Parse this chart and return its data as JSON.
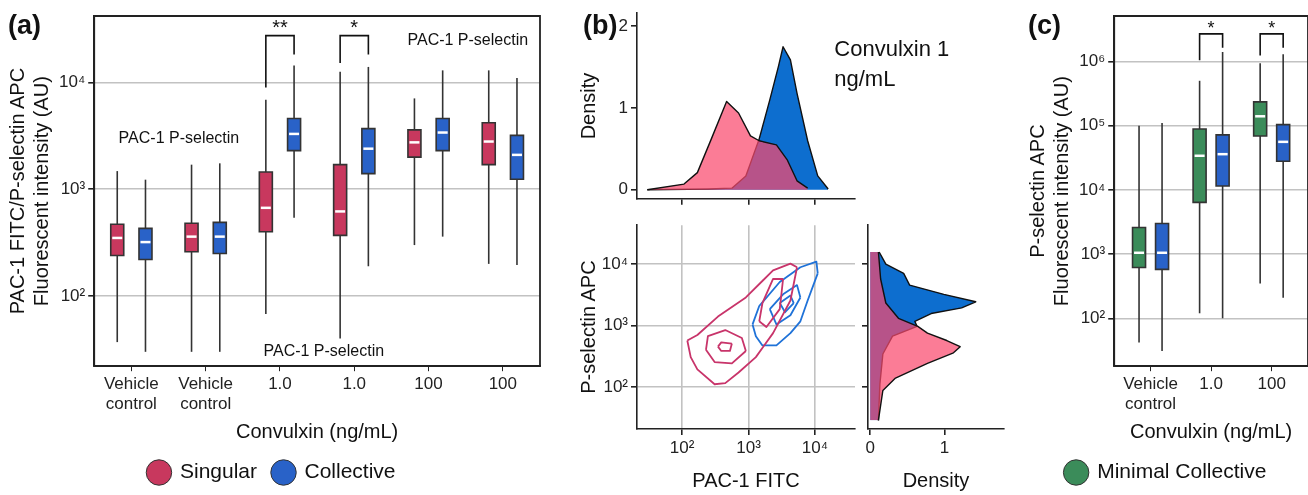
{
  "chart_data": [
    {
      "type": "box",
      "title": "(a)",
      "xlabel": "Convulxin (ng/mL)",
      "ylabel": "PAC-1 FITC/P-selectin APC\nFluorescent intensity (AU)",
      "categories": [
        "Vehicle control",
        "Vehicle control",
        "1.0",
        "1.0",
        "100",
        "100"
      ],
      "log": "y",
      "ylim": [
        22,
        42000
      ],
      "yticks": [
        {
          "value": 100,
          "label": "10²"
        },
        {
          "value": 1000,
          "label": "10³"
        },
        {
          "value": 10000,
          "label": "10⁴"
        }
      ],
      "grid": "y",
      "legend": "bottom",
      "annotations": [
        "**",
        "*",
        "PAC-1 P-selectin",
        "PAC-1 P-selectin",
        "PAC-1 P-selectin"
      ],
      "series": [
        {
          "name": "Singular",
          "color": "#c8385e",
          "boxes": [
            {
              "low": 37,
              "q1": 240,
              "median": 350,
              "q3": 470,
              "high": 1480
            },
            {
              "low": 30,
              "q1": 260,
              "median": 360,
              "q3": 480,
              "high": 1700
            },
            {
              "low": 68,
              "q1": 400,
              "median": 670,
              "q3": 1450,
              "high": 6900
            },
            {
              "low": 40,
              "q1": 370,
              "median": 620,
              "q3": 1700,
              "high": 12600
            },
            {
              "low": 300,
              "q1": 2000,
              "median": 2750,
              "q3": 3600,
              "high": 7100
            },
            {
              "low": 200,
              "q1": 1700,
              "median": 2800,
              "q3": 4200,
              "high": 13000
            }
          ]
        },
        {
          "name": "Collective",
          "color": "#2962c8",
          "boxes": [
            {
              "low": 30,
              "q1": 220,
              "median": 320,
              "q3": 430,
              "high": 1230
            },
            {
              "low": 30,
              "q1": 250,
              "median": 360,
              "q3": 490,
              "high": 1750
            },
            {
              "low": 540,
              "q1": 2300,
              "median": 3300,
              "q3": 4600,
              "high": 14400
            },
            {
              "low": 190,
              "q1": 1400,
              "median": 2400,
              "q3": 3700,
              "high": 14000
            },
            {
              "low": 360,
              "q1": 2300,
              "median": 3400,
              "q3": 4600,
              "high": 13000
            },
            {
              "low": 195,
              "q1": 1240,
              "median": 2100,
              "q3": 3200,
              "high": 11000
            }
          ]
        }
      ]
    },
    {
      "type": "area",
      "title": "(b)",
      "ylabel": "Density",
      "annotations": [
        "Convulxin 1 ng/mL"
      ],
      "log": "x",
      "xlim": [
        21,
        40000
      ],
      "xticks": [
        {
          "value": 100,
          "label": null
        },
        {
          "value": 1000,
          "label": null
        },
        {
          "value": 10000,
          "label": null
        }
      ],
      "ylim": [
        -0.11,
        2.16
      ],
      "yticks": [
        0,
        1,
        2
      ],
      "tick_labels": "y",
      "series": [
        {
          "color": "#fa4a6e",
          "x": [
            30,
            107,
            170,
            275,
            468,
            708,
            1070,
            1445,
            2630,
            3800,
            5370,
            7760
          ],
          "values": [
            0,
            0.07,
            0.21,
            0.62,
            1.08,
            0.94,
            0.66,
            0.6,
            0.55,
            0.37,
            0.11,
            0.02
          ]
        },
        {
          "color": "#0066cc",
          "x": [
            30,
            245,
            562,
            912,
            1445,
            2090,
            2820,
            3310,
            4270,
            5370,
            7760,
            11000,
            15800
          ],
          "values": [
            0,
            0.01,
            0.02,
            0.17,
            0.62,
            1.1,
            1.51,
            1.75,
            1.59,
            1.18,
            0.6,
            0.17,
            0.01
          ]
        }
      ]
    },
    {
      "type": "line",
      "xlabel": "PAC-1 FITC",
      "ylabel": "P-selectin APC",
      "log": "xy",
      "xlim": [
        21,
        40000
      ],
      "xticks": [
        {
          "value": 100,
          "label": "10²"
        },
        {
          "value": 1000,
          "label": "10³"
        },
        {
          "value": 10000,
          "label": "10⁴"
        }
      ],
      "ylim": [
        21,
        43000
      ],
      "yticks": [
        {
          "value": 100,
          "label": "10²"
        },
        {
          "value": 1000,
          "label": "10³"
        },
        {
          "value": 10000,
          "label": "10⁴"
        }
      ],
      "grid": true,
      "marker": "none",
      "line_style": "solid",
      "series": [
        {
          "color": "#c8346a",
          "x": [
            120,
            170,
            347,
            912,
            2340,
            4270,
            5370
          ],
          "values": [
            575,
            708,
            1410,
            2880,
            7940,
            10200,
            8910
          ]
        },
        {
          "color": "#c8346a",
          "x": [
            120,
            135,
            170,
            309,
            447,
            708,
            1290,
            2340,
            4270,
            5370
          ],
          "values": [
            575,
            309,
            195,
            112,
            117,
            174,
            309,
            759,
            2570,
            8910
          ]
        },
        {
          "color": "#c8346a",
          "x": [
            229,
            245,
            447,
            794,
            912
          ],
          "values": [
            407,
            676,
            851,
            631,
            389
          ]
        },
        {
          "color": "#c8346a",
          "x": [
            229,
            309,
            562,
            912
          ],
          "values": [
            407,
            257,
            245,
            389
          ]
        },
        {
          "color": "#c8346a",
          "x": [
            347,
            389,
            562
          ],
          "values": [
            457,
            537,
            513
          ]
        },
        {
          "color": "#c8346a",
          "x": [
            347,
            389,
            525,
            562
          ],
          "values": [
            457,
            389,
            389,
            513
          ]
        },
        {
          "color": "#c8346a",
          "x": [
            1450,
            1620,
            2340,
            3310
          ],
          "values": [
            1180,
            2340,
            5750,
            5750
          ]
        },
        {
          "color": "#c8346a",
          "x": [
            1450,
            1860,
            2950,
            3310
          ],
          "values": [
            1180,
            955,
            1860,
            5750
          ]
        },
        {
          "color": "#1f72d8",
          "x": [
            1150,
            1450,
            2950,
            6030,
            10500,
            11000
          ],
          "values": [
            1050,
            2090,
            5130,
            8910,
            11000,
            7080
          ]
        },
        {
          "color": "#1f72d8",
          "x": [
            1150,
            1290,
            1620,
            2630,
            4270,
            6030,
            7760,
            11000
          ],
          "values": [
            1050,
            676,
            479,
            479,
            759,
            1180,
            2570,
            7080
          ]
        },
        {
          "color": "#1f72d8",
          "x": [
            2090,
            3310,
            5370,
            6030
          ],
          "values": [
            1860,
            3240,
            4570,
            2880
          ]
        },
        {
          "color": "#1f72d8",
          "x": [
            2090,
            2630,
            4270,
            6030
          ],
          "values": [
            1860,
            1050,
            1480,
            2880
          ]
        },
        {
          "color": "#1f72d8",
          "x": [
            2950,
            4270,
            4790
          ],
          "values": [
            2340,
            3090,
            2340
          ]
        },
        {
          "color": "#1f72d8",
          "x": [
            2950,
            3550,
            4790
          ],
          "values": [
            2340,
            1660,
            2340
          ]
        }
      ]
    },
    {
      "type": "area",
      "orientation": "horizontal",
      "xlabel": "Density",
      "log": "y",
      "ylim": [
        21,
        43000
      ],
      "yticks": [
        {
          "value": 100,
          "label": null
        },
        {
          "value": 1000,
          "label": null
        },
        {
          "value": 10000,
          "label": null
        }
      ],
      "xlim": [
        -0.03,
        1.8
      ],
      "xticks": [
        0,
        1
      ],
      "tick_labels": "x",
      "series": [
        {
          "color": "#fa4a6e",
          "x": [
            29,
            89,
            141,
            245,
            363,
            457,
            575,
            759,
            977,
            1320,
            2340,
            5750,
            15800
          ],
          "values": [
            0.11,
            0.17,
            0.34,
            0.77,
            1.12,
            1.21,
            1.03,
            0.77,
            0.64,
            0.38,
            0.21,
            0.14,
            0.11
          ]
        },
        {
          "color": "#0066cc",
          "x": [
            29,
            112,
            347,
            676,
            977,
            1180,
            1580,
            1950,
            2450,
            3240,
            4570,
            7100,
            10000,
            15800
          ],
          "values": [
            0.11,
            0.13,
            0.17,
            0.3,
            0.63,
            0.6,
            0.82,
            1.23,
            1.42,
            0.99,
            0.53,
            0.45,
            0.21,
            0.12
          ]
        }
      ]
    },
    {
      "type": "box",
      "title": "(c)",
      "xlabel": "Convulxin (ng/mL)",
      "ylabel": "P-selectin APC\nFluorescent intensity (AU)",
      "categories": [
        "Vehicle control",
        "1.0",
        "100"
      ],
      "log": "y",
      "ylim": [
        18,
        5100000
      ],
      "yticks": [
        {
          "value": 100,
          "label": "10²"
        },
        {
          "value": 1000,
          "label": "10³"
        },
        {
          "value": 10000,
          "label": "10⁴"
        },
        {
          "value": 100000,
          "label": "10⁵"
        },
        {
          "value": 1000000,
          "label": "10⁶"
        }
      ],
      "grid": "y",
      "legend": "bottom",
      "annotations": [
        "*",
        "*"
      ],
      "series": [
        {
          "name": "Minimal Collective",
          "color": "#3b8c5a",
          "boxes": [
            {
              "low": 42,
              "q1": 620,
              "median": 1050,
              "q3": 2600,
              "high": 100000
            },
            {
              "low": 120,
              "q1": 6400,
              "median": 34000,
              "q3": 89000,
              "high": 500000
            },
            {
              "low": 350,
              "q1": 69000,
              "median": 140000,
              "q3": 235000,
              "high": 940000
            }
          ]
        },
        {
          "color": "#2962c8",
          "boxes": [
            {
              "low": 31,
              "q1": 580,
              "median": 1050,
              "q3": 3000,
              "high": 110000
            },
            {
              "low": 100,
              "q1": 11500,
              "median": 36000,
              "q3": 72000,
              "high": 1400000
            },
            {
              "low": 210,
              "q1": 28000,
              "median": 56000,
              "q3": 104000,
              "high": 1300000
            }
          ]
        }
      ]
    }
  ]
}
